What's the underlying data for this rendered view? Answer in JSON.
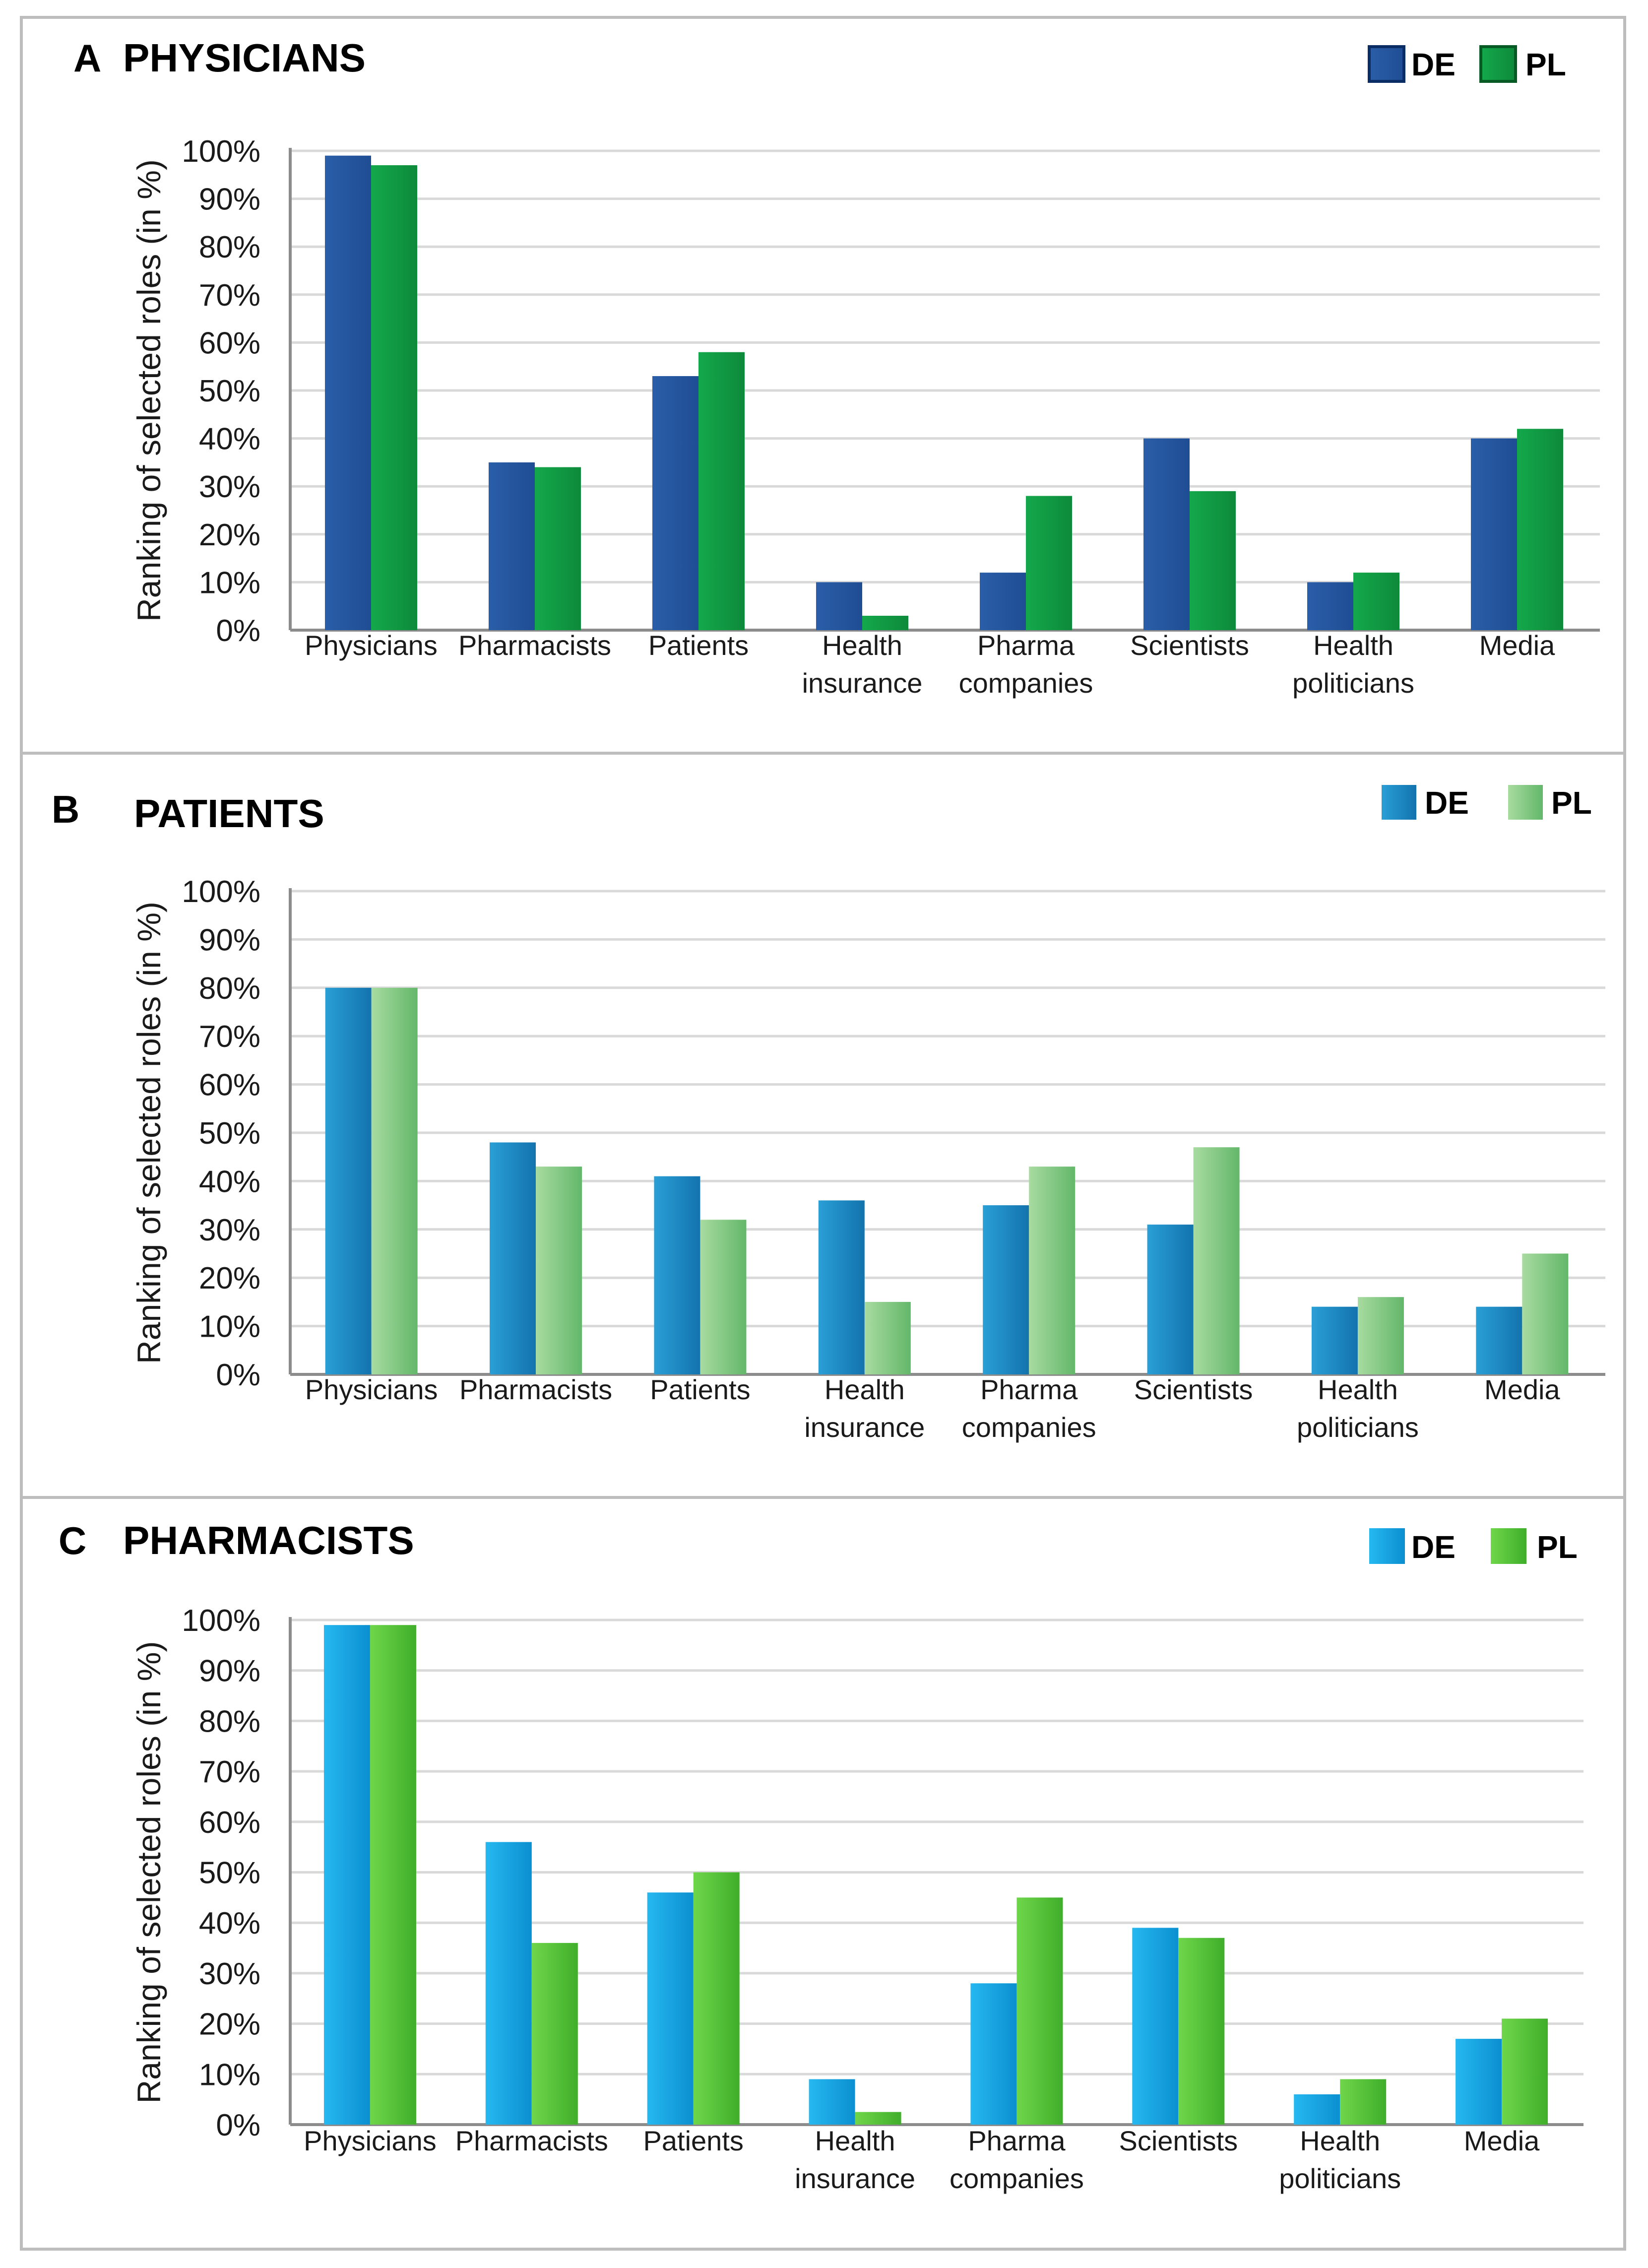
{
  "colors": {
    "A": {
      "DE": [
        "#2a5ea8",
        "#1f4d94"
      ],
      "PL": [
        "#14a84b",
        "#0d8a3a"
      ],
      "DE_border": "#0b2d66",
      "PL_border": "#075a23"
    },
    "B": {
      "DE": [
        "#2a9fd6",
        "#1373ad"
      ],
      "PL": [
        "#a8dba0",
        "#63b76a"
      ]
    },
    "C": {
      "DE": [
        "#26b8f0",
        "#0b8fd0"
      ],
      "PL": [
        "#6fd64a",
        "#3fae2a"
      ]
    }
  },
  "chart_data": [
    {
      "type": "bar",
      "panel_letter": "A",
      "title": "PHYSICIANS",
      "ylabel": "Ranking of selected roles  (in %)",
      "xlabel": "",
      "ylim": [
        0,
        100
      ],
      "yticks": [
        0,
        10,
        20,
        30,
        40,
        50,
        60,
        70,
        80,
        90,
        100
      ],
      "ytick_labels": [
        "0%",
        "10%",
        "20%",
        "30%",
        "40%",
        "50%",
        "60%",
        "70%",
        "80%",
        "90%",
        "100%"
      ],
      "categories": [
        [
          "Physicians"
        ],
        [
          "Pharmacists"
        ],
        [
          "Patients"
        ],
        [
          "Health",
          "insurance"
        ],
        [
          "Pharma",
          "companies"
        ],
        [
          "Scientists"
        ],
        [
          "Health",
          "politicians"
        ],
        [
          "Media"
        ]
      ],
      "series": [
        {
          "name": "DE",
          "values": [
            99,
            35,
            53,
            10,
            12,
            40,
            10,
            40
          ]
        },
        {
          "name": "PL",
          "values": [
            97,
            34,
            58,
            3,
            28,
            29,
            12,
            42
          ]
        }
      ],
      "legend": "top-right",
      "grid": true
    },
    {
      "type": "bar",
      "panel_letter": "B",
      "title": "PATIENTS",
      "ylabel": "Ranking of selected roles  (in %)",
      "xlabel": "",
      "ylim": [
        0,
        100
      ],
      "yticks": [
        0,
        10,
        20,
        30,
        40,
        50,
        60,
        70,
        80,
        90,
        100
      ],
      "ytick_labels": [
        "0%",
        "10%",
        "20%",
        "30%",
        "40%",
        "50%",
        "60%",
        "70%",
        "80%",
        "90%",
        "100%"
      ],
      "categories": [
        [
          "Physicians"
        ],
        [
          "Pharmacists"
        ],
        [
          "Patients"
        ],
        [
          "Health",
          "insurance"
        ],
        [
          "Pharma",
          "companies"
        ],
        [
          "Scientists"
        ],
        [
          "Health",
          "politicians"
        ],
        [
          "Media"
        ]
      ],
      "series": [
        {
          "name": "DE",
          "values": [
            80,
            48,
            41,
            36,
            35,
            31,
            14,
            14
          ]
        },
        {
          "name": "PL",
          "values": [
            80,
            43,
            32,
            15,
            43,
            47,
            16,
            25
          ]
        }
      ],
      "legend": "top-right",
      "grid": true
    },
    {
      "type": "bar",
      "panel_letter": "C",
      "title": "PHARMACISTS",
      "ylabel": "Ranking of selected roles  (in %)",
      "xlabel": "",
      "ylim": [
        0,
        100
      ],
      "yticks": [
        0,
        10,
        20,
        30,
        40,
        50,
        60,
        70,
        80,
        90,
        100
      ],
      "ytick_labels": [
        "0%",
        "10%",
        "20%",
        "30%",
        "40%",
        "50%",
        "60%",
        "70%",
        "80%",
        "90%",
        "100%"
      ],
      "categories": [
        [
          "Physicians"
        ],
        [
          "Pharmacists"
        ],
        [
          "Patients"
        ],
        [
          "Health",
          "insurance"
        ],
        [
          "Pharma",
          "companies"
        ],
        [
          "Scientists"
        ],
        [
          "Health",
          "politicians"
        ],
        [
          "Media"
        ]
      ],
      "series": [
        {
          "name": "DE",
          "values": [
            99,
            56,
            46,
            9,
            28,
            39,
            6,
            17
          ]
        },
        {
          "name": "PL",
          "values": [
            99,
            36,
            50,
            2.5,
            45,
            37,
            9,
            21
          ]
        }
      ],
      "legend": "top-right",
      "grid": true
    }
  ]
}
